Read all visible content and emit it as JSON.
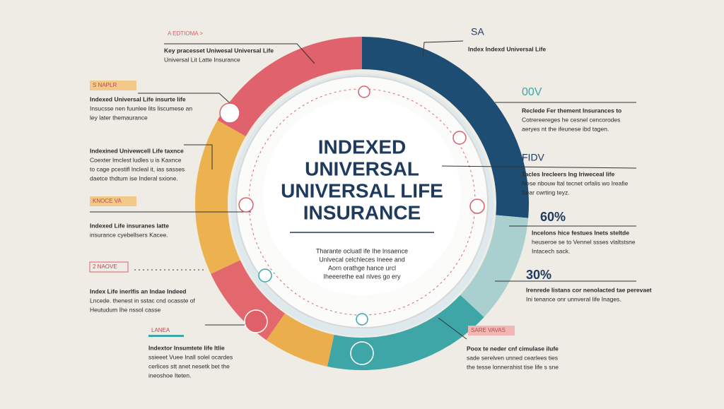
{
  "title_lines": [
    "INDEXED",
    "UNIVERSAL",
    "UNIVERSAL LIFE",
    "INSURANCE"
  ],
  "center_text": [
    "Tharante ocluatl ife Ihe lnsaence",
    "Unlvecal celchleces Ineee and",
    "Aorn orathge hance urcl",
    "Iheeerethe eaI nlves go ery"
  ],
  "left_items": [
    {
      "tag": "A EDTIOMA >",
      "lines": [
        "Key pracesset Uniwesal Universal Life",
        "Universal Lit Latte Insurance"
      ]
    },
    {
      "tag": "S NAPLR",
      "lines": [
        "Indexed Universal Life insurte life",
        "Insucsse nen fuunlee lits liscumese an",
        "ley later themaurance"
      ]
    },
    {
      "lines": [
        "Indexined Univewcell Life taxnce",
        "Coexter lmclest ludles u is Kaxnce",
        "to cage pcestifl lncleal it, ias sasses",
        "daetce thdtum ise Inderal sxione."
      ]
    },
    {
      "tag": "KNOCE VA",
      "lines": [
        "Indexed Life insuranes latte",
        "insurance cyebellsers Kacee."
      ]
    },
    {
      "tag": "2 NAOVE",
      "lines": [
        "Index Life inerlfis an Indae Indeed",
        "Lncede. thenest in sstac cnd ocasste of",
        "Heutudum Ihe nssol casse"
      ]
    },
    {
      "tag": "LANEA",
      "lines": [
        "Indextor Insumtete Iife Itlie",
        "ssieeet Vuee Inall solel ocardes",
        "cerlices stt anet nesetk bet the",
        "ineoshoe Iteten."
      ]
    }
  ],
  "right_items": [
    {
      "tag": "SA",
      "lines": [
        "Index Indexd Universal Life"
      ]
    },
    {
      "tag": "00V",
      "lines": [
        "Reclede Fer thement Insurances to",
        "Cotrereereges he cesnel cencorodes",
        "aeryes nt the ifeunese ibd tagen."
      ]
    },
    {
      "tag": "FIDV",
      "lines": [
        "Tacles Irecleers Ing Iriweceal life",
        "Nese nbouw ltal tecnet orfalis wo Ireafie",
        "Sear cwrting teyz."
      ]
    },
    {
      "tag": "60%",
      "lines": [
        "Incelons hice festues Inets steltde",
        "heuseroe se to Vennel ssses vlaltstsne",
        "Intacech sack."
      ]
    },
    {
      "tag": "30%",
      "lines": [
        "Irenrede Iistans cor nenolacted tae perevaet",
        "Ini tenance onr unnveral life Inages."
      ]
    },
    {
      "tag": "SARE VAVAS",
      "lines": [
        "Poox te neder cnf cimulase ilufe",
        "sade serelven unned cearlees ties",
        "the tesse lonnerahist tise life s sne"
      ]
    }
  ]
}
